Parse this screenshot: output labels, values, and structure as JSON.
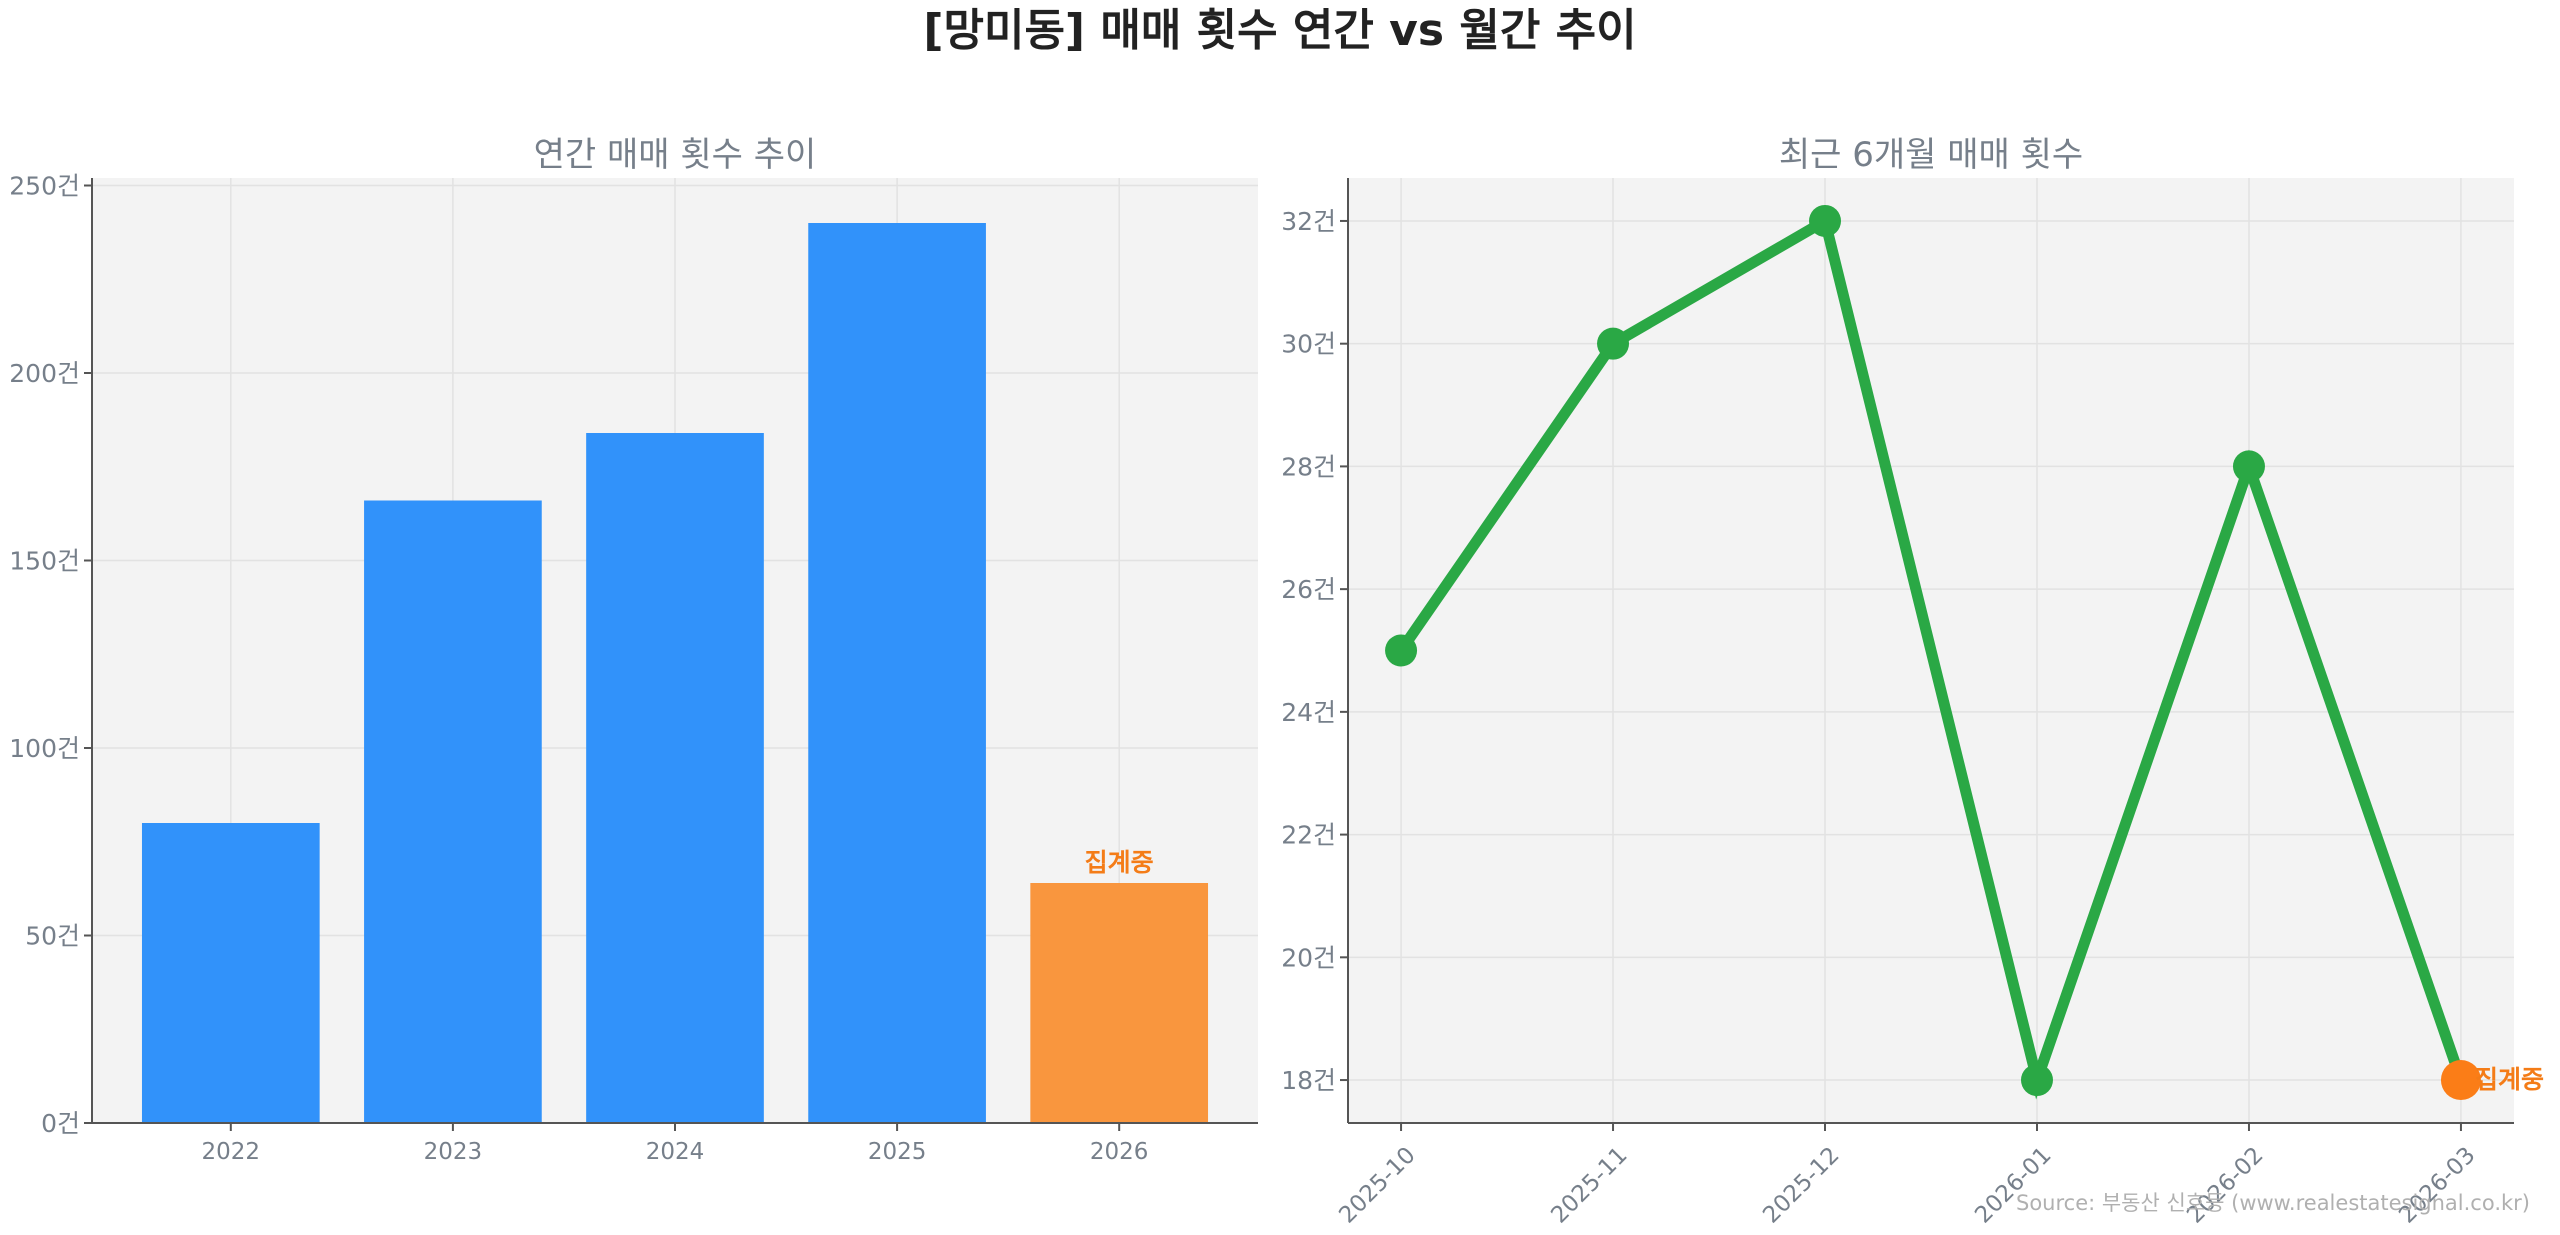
{
  "figure_title": "[망미동] 매매 횟수 연간 vs 월간 추이",
  "source": "Source: 부동산 신호등 (www.realestatesignal.co.kr)",
  "colors": {
    "bar": "#3192fa",
    "bar_highlight": "#f9963e",
    "line": "#2aa845",
    "highlight_point": "#fb7d17",
    "highlight_text": "#f47c17",
    "plot_bg": "#f3f3f3",
    "text": "#767f8a"
  },
  "chart_data": [
    {
      "type": "bar",
      "title": "연간 매매 횟수 추이",
      "categories": [
        "2022",
        "2023",
        "2024",
        "2025",
        "2026"
      ],
      "values": [
        80,
        166,
        184,
        240,
        64
      ],
      "ylim": [
        0,
        252
      ],
      "yticks": [
        0,
        50,
        100,
        150,
        200,
        250
      ],
      "tick_suffix": "건",
      "grid": true,
      "highlight_index": 4,
      "highlight_label": "집계중"
    },
    {
      "type": "line",
      "title": "최근 6개월 매매 횟수",
      "categories": [
        "2025-10",
        "2025-11",
        "2025-12",
        "2026-01",
        "2026-02",
        "2026-03"
      ],
      "values": [
        25,
        30,
        32,
        18,
        28,
        18
      ],
      "ylim": [
        17.3,
        32.7
      ],
      "yticks": [
        18,
        20,
        22,
        24,
        26,
        28,
        30,
        32
      ],
      "tick_suffix": "건",
      "grid": true,
      "highlight_index": 5,
      "highlight_label": "집계중"
    }
  ]
}
